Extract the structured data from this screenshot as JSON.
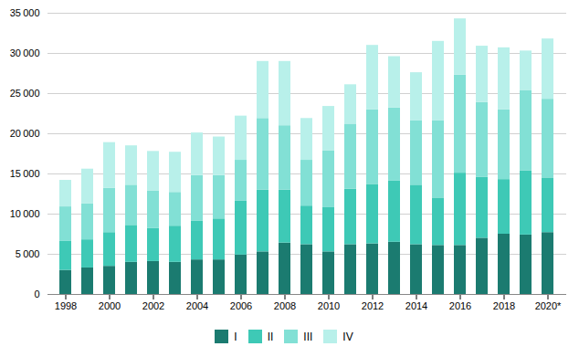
{
  "chart_data": {
    "type": "bar",
    "stacked": true,
    "categories": [
      "1998",
      null,
      "2000",
      null,
      "2002",
      null,
      "2004",
      null,
      "2006",
      null,
      "2008",
      null,
      "2010",
      null,
      "2012",
      null,
      "2014",
      null,
      "2016",
      null,
      "2018",
      null,
      "2020*"
    ],
    "series": [
      {
        "name": "I",
        "color": "#1b7b70",
        "values": [
          3000,
          3300,
          3500,
          4000,
          4100,
          4000,
          4300,
          4300,
          4900,
          5300,
          6400,
          6200,
          5300,
          6200,
          6300,
          6500,
          6200,
          6100,
          6100,
          7000,
          7500,
          7400,
          7700
        ]
      },
      {
        "name": "II",
        "color": "#3ec9b6",
        "values": [
          3600,
          3500,
          4200,
          4600,
          4100,
          4500,
          4800,
          5100,
          6700,
          7700,
          6600,
          4800,
          5500,
          6900,
          7400,
          7600,
          7400,
          5900,
          9000,
          7600,
          6800,
          8000,
          6800
        ]
      },
      {
        "name": "III",
        "color": "#82e0d5",
        "values": [
          4300,
          4500,
          5500,
          5000,
          4700,
          4200,
          5700,
          5400,
          5100,
          8900,
          8000,
          5700,
          7100,
          8100,
          9300,
          9100,
          8000,
          9600,
          12200,
          9300,
          8700,
          10000,
          9800
        ]
      },
      {
        "name": "IV",
        "color": "#b8f0ea",
        "values": [
          3300,
          4300,
          5700,
          4900,
          4900,
          5000,
          5300,
          4800,
          5500,
          7100,
          8000,
          5200,
          5500,
          4900,
          8000,
          6400,
          6000,
          9900,
          7000,
          7000,
          7700,
          4900,
          7500
        ]
      }
    ],
    "ylim": [
      0,
      35000
    ],
    "yticks": [
      0,
      {
        "value": 5000,
        "label": "5 000"
      },
      {
        "value": 10000,
        "label": "10 000"
      },
      {
        "value": 15000,
        "label": "15 000"
      },
      {
        "value": 20000,
        "label": "20 000"
      },
      {
        "value": 25000,
        "label": "25 000"
      },
      {
        "value": 30000,
        "label": "30 000"
      },
      {
        "value": 35000,
        "label": "35 000"
      }
    ],
    "grid": true,
    "legend": "bottom"
  }
}
